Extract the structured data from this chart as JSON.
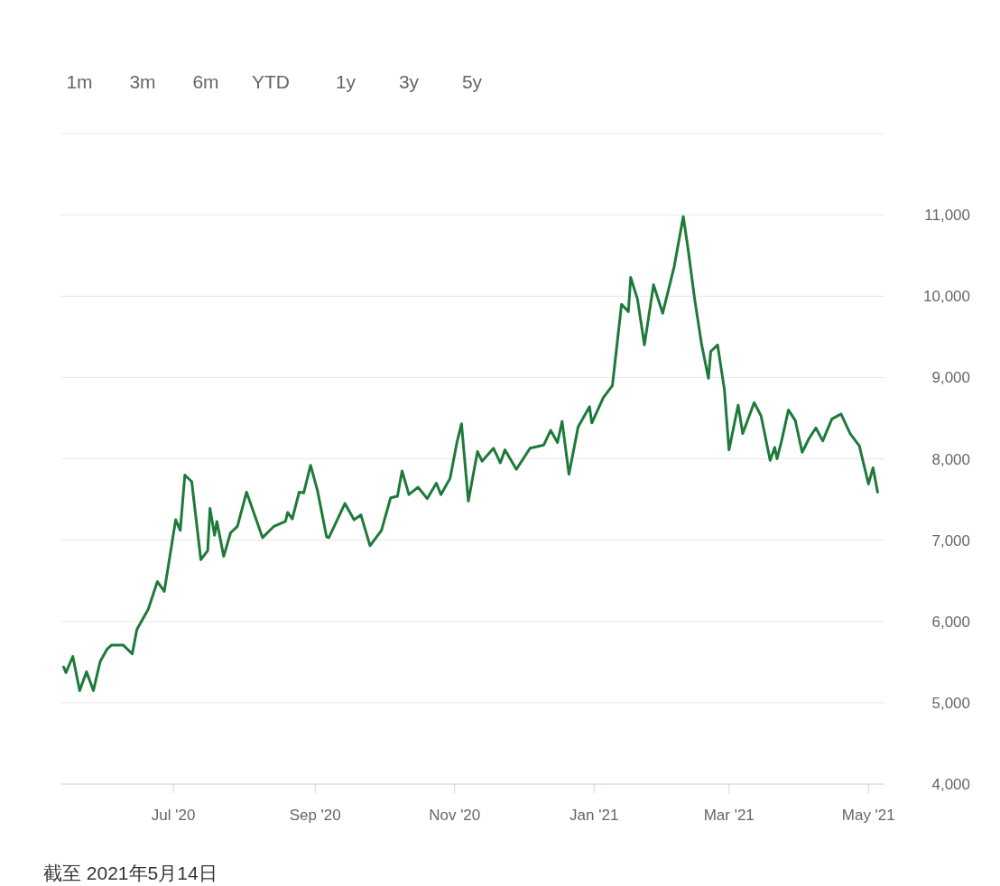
{
  "chart_data": {
    "type": "line",
    "x": [
      "2020-05-14",
      "2020-05-15",
      "2020-05-18",
      "2020-05-21",
      "2020-05-24",
      "2020-05-27",
      "2020-05-30",
      "2020-06-02",
      "2020-06-04",
      "2020-06-09",
      "2020-06-13",
      "2020-06-15",
      "2020-06-20",
      "2020-06-24",
      "2020-06-27",
      "2020-07-02",
      "2020-07-04",
      "2020-07-06",
      "2020-07-09",
      "2020-07-13",
      "2020-07-16",
      "2020-07-17",
      "2020-07-19",
      "2020-07-20",
      "2020-07-23",
      "2020-07-26",
      "2020-07-29",
      "2020-08-02",
      "2020-08-09",
      "2020-08-14",
      "2020-08-19",
      "2020-08-20",
      "2020-08-22",
      "2020-08-25",
      "2020-08-27",
      "2020-08-30",
      "2020-09-02",
      "2020-09-06",
      "2020-09-07",
      "2020-09-14",
      "2020-09-18",
      "2020-09-21",
      "2020-09-25",
      "2020-09-30",
      "2020-10-04",
      "2020-10-07",
      "2020-10-09",
      "2020-10-12",
      "2020-10-16",
      "2020-10-20",
      "2020-10-24",
      "2020-10-26",
      "2020-10-30",
      "2020-11-02",
      "2020-11-04",
      "2020-11-07",
      "2020-11-11",
      "2020-11-13",
      "2020-11-18",
      "2020-11-21",
      "2020-11-23",
      "2020-11-28",
      "2020-12-04",
      "2020-12-10",
      "2020-12-13",
      "2020-12-16",
      "2020-12-18",
      "2020-12-21",
      "2020-12-25",
      "2020-12-30",
      "2020-12-31",
      "2021-01-05",
      "2021-01-09",
      "2021-01-13",
      "2021-01-16",
      "2021-01-17",
      "2021-01-20",
      "2021-01-23",
      "2021-01-27",
      "2021-01-31",
      "2021-02-05",
      "2021-02-09",
      "2021-02-11",
      "2021-02-14",
      "2021-02-17",
      "2021-02-20",
      "2021-02-21",
      "2021-02-24",
      "2021-02-27",
      "2021-03-01",
      "2021-03-05",
      "2021-03-07",
      "2021-03-12",
      "2021-03-15",
      "2021-03-19",
      "2021-03-21",
      "2021-03-22",
      "2021-03-24",
      "2021-03-27",
      "2021-03-30",
      "2021-04-02",
      "2021-04-05",
      "2021-04-08",
      "2021-04-11",
      "2021-04-15",
      "2021-04-19",
      "2021-04-23",
      "2021-04-27",
      "2021-05-01",
      "2021-05-03",
      "2021-05-05"
    ],
    "series": [
      {
        "color": "#1e7a3a",
        "values": [
          5440,
          5370,
          5570,
          5150,
          5380,
          5150,
          5510,
          5660,
          5710,
          5710,
          5600,
          5900,
          6150,
          6490,
          6370,
          7250,
          7120,
          7800,
          7720,
          6760,
          6870,
          7390,
          7060,
          7230,
          6800,
          7090,
          7170,
          7590,
          7030,
          7170,
          7230,
          7340,
          7260,
          7590,
          7580,
          7920,
          7610,
          7040,
          7030,
          7450,
          7250,
          7310,
          6930,
          7120,
          7520,
          7540,
          7850,
          7560,
          7650,
          7510,
          7700,
          7560,
          7760,
          8200,
          8430,
          7480,
          8090,
          7970,
          8130,
          7950,
          8110,
          7870,
          8130,
          8170,
          8350,
          8200,
          8460,
          7810,
          8390,
          8640,
          8440,
          8750,
          8900,
          9900,
          9810,
          10230,
          9960,
          9400,
          10140,
          9790,
          10360,
          10980,
          10600,
          9960,
          9410,
          8990,
          9320,
          9400,
          8850,
          8110,
          8660,
          8310,
          8690,
          8530,
          7980,
          8140,
          8000,
          8220,
          8600,
          8470,
          8080,
          8250,
          8380,
          8220,
          8490,
          8550,
          8310,
          8160,
          7690,
          7890,
          7590
        ]
      }
    ],
    "xlim": [
      "2020-05-13",
      "2021-05-08"
    ],
    "xticks": [
      {
        "value": "2020-07-01",
        "label": "Jul '20"
      },
      {
        "value": "2020-09-01",
        "label": "Sep '20"
      },
      {
        "value": "2020-11-01",
        "label": "Nov '20"
      },
      {
        "value": "2021-01-01",
        "label": "Jan '21"
      },
      {
        "value": "2021-03-01",
        "label": "Mar '21"
      },
      {
        "value": "2021-05-01",
        "label": "May '21"
      }
    ],
    "ylim": [
      4000,
      12000
    ],
    "yticks": [
      {
        "value": 4000,
        "label": "4,000"
      },
      {
        "value": 5000,
        "label": "5,000"
      },
      {
        "value": 6000,
        "label": "6,000"
      },
      {
        "value": 7000,
        "label": "7,000"
      },
      {
        "value": 8000,
        "label": "8,000"
      },
      {
        "value": 9000,
        "label": "9,000"
      },
      {
        "value": 10000,
        "label": "10,000"
      },
      {
        "value": 11000,
        "label": "11,000"
      },
      {
        "value": 12000,
        "label": null
      }
    ],
    "grid": "y",
    "annotations": [
      "1m",
      "3m",
      "6m",
      "YTD",
      "1y",
      "3y",
      "5y",
      "截至 2021年5月14日"
    ]
  }
}
